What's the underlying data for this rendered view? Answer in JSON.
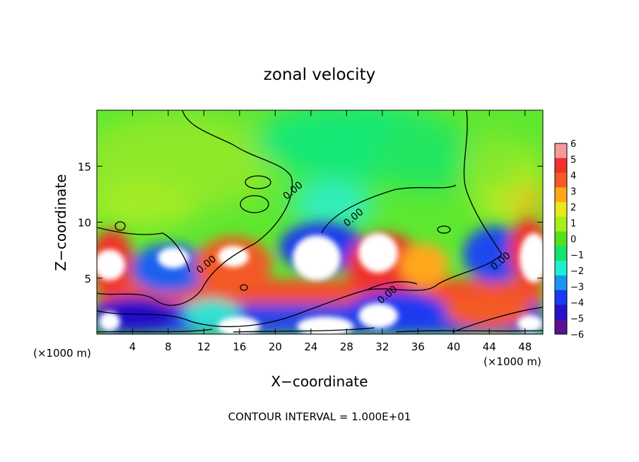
{
  "chart_data": {
    "type": "heatmap",
    "title": "zonal velocity",
    "xlabel": "X−coordinate",
    "ylabel": "Z−coordinate",
    "x_unit_left": "(×1000 m)",
    "x_unit_right": "(×1000 m)",
    "footer": "CONTOUR INTERVAL = 1.000E+01",
    "xlim": [
      0,
      50
    ],
    "ylim": [
      0,
      20
    ],
    "x_ticks": [
      4,
      8,
      12,
      16,
      20,
      24,
      28,
      32,
      36,
      40,
      44,
      48
    ],
    "y_ticks": [
      5,
      10,
      15
    ],
    "colorbar": {
      "levels": [
        6,
        5,
        4,
        3,
        2,
        1,
        0,
        -1,
        -2,
        -3,
        -4,
        -5,
        -6
      ],
      "labels": [
        "6",
        "5",
        "4",
        "3",
        "2",
        "1",
        "0",
        "−1",
        "−2",
        "−3",
        "−4",
        "−5",
        "−6"
      ],
      "colors": [
        "#f59a9a",
        "#f0322a",
        "#f35a28",
        "#ffa81c",
        "#e8e81a",
        "#a8ee18",
        "#55e01c",
        "#14e36e",
        "#1cf0d2",
        "#1a96ee",
        "#1a3af0",
        "#2810c8",
        "#5a1090"
      ]
    },
    "contour_labels": [
      {
        "text": "0.00",
        "x": 12.5,
        "z": 6.0
      },
      {
        "text": "0.00",
        "x": 22.2,
        "z": 12.6
      },
      {
        "text": "0.00",
        "x": 29.0,
        "z": 10.2
      },
      {
        "text": "0.00",
        "x": 32.8,
        "z": 3.3
      },
      {
        "text": "0.00",
        "x": 45.5,
        "z": 6.3
      }
    ]
  }
}
